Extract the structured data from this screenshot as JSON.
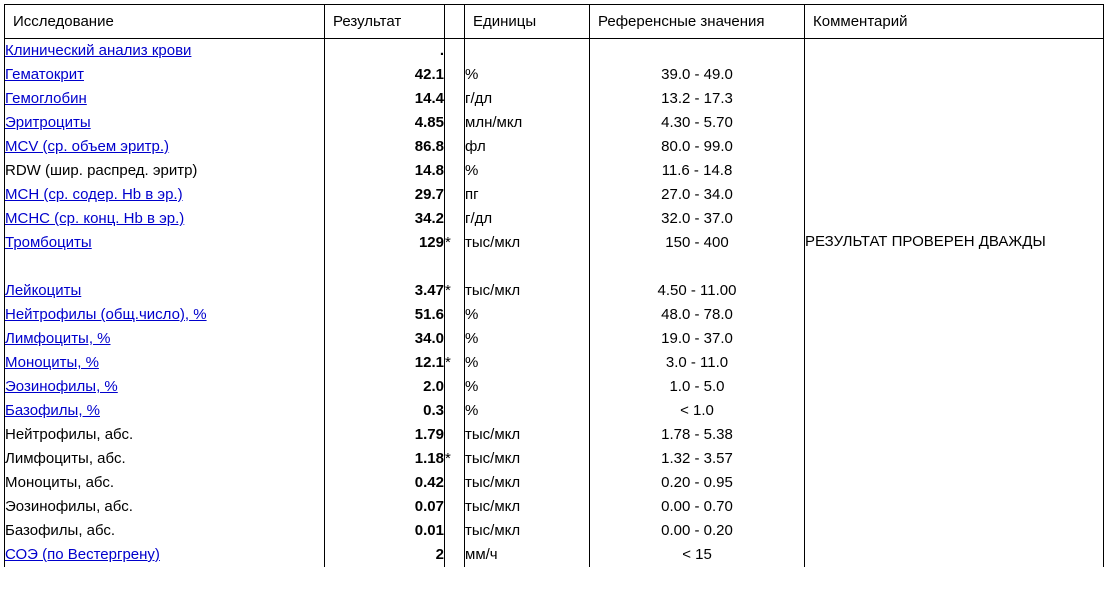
{
  "headers": {
    "research": "Исследование",
    "result": "Результат",
    "units": "Единицы",
    "reference": "Референсные значения",
    "comment": "Комментарий"
  },
  "comment_text": "РЕЗУЛЬТАТ ПРОВЕРЕН ДВАЖДЫ",
  "link_color": "#0000cc",
  "rows": [
    {
      "name": "Клинический анализ крови",
      "link": true,
      "result": ".",
      "flag": "",
      "units": "",
      "ref": ""
    },
    {
      "name": "Гематокрит",
      "link": true,
      "result": "42.1",
      "flag": "",
      "units": "%",
      "ref": "39.0 - 49.0"
    },
    {
      "name": "Гемоглобин",
      "link": true,
      "result": "14.4",
      "flag": "",
      "units": "г/дл",
      "ref": "13.2 - 17.3"
    },
    {
      "name": "Эритроциты",
      "link": true,
      "result": "4.85",
      "flag": "",
      "units": "млн/мкл",
      "ref": "4.30 - 5.70"
    },
    {
      "name": "MCV (ср. объем эритр.)",
      "link": true,
      "result": "86.8",
      "flag": "",
      "units": "фл",
      "ref": "80.0 - 99.0"
    },
    {
      "name": "RDW (шир. распред. эритр)",
      "link": false,
      "result": "14.8",
      "flag": "",
      "units": "%",
      "ref": "11.6 - 14.8"
    },
    {
      "name": "MCH (ср. содер. Hb в эр.)",
      "link": true,
      "result": "29.7",
      "flag": "",
      "units": "пг",
      "ref": "27.0 - 34.0"
    },
    {
      "name": "MCHC (ср. конц. Hb в эр.)",
      "link": true,
      "result": "34.2",
      "flag": "",
      "units": "г/дл",
      "ref": "32.0 - 37.0"
    },
    {
      "name": "Тромбоциты",
      "link": true,
      "result": "129",
      "flag": "*",
      "units": "тыс/мкл",
      "ref": "150 - 400"
    },
    {
      "name": "",
      "link": false,
      "result": "",
      "flag": "",
      "units": "",
      "ref": "",
      "spacer": true
    },
    {
      "name": "Лейкоциты",
      "link": true,
      "result": "3.47",
      "flag": "*",
      "units": "тыс/мкл",
      "ref": "4.50 - 11.00"
    },
    {
      "name": "Нейтрофилы (общ.число), %",
      "link": true,
      "result": "51.6",
      "flag": "",
      "units": "%",
      "ref": "48.0 - 78.0"
    },
    {
      "name": "Лимфоциты, %",
      "link": true,
      "result": "34.0",
      "flag": "",
      "units": "%",
      "ref": "19.0 - 37.0"
    },
    {
      "name": "Моноциты, %",
      "link": true,
      "result": "12.1",
      "flag": "*",
      "units": "%",
      "ref": "3.0 - 11.0"
    },
    {
      "name": "Эозинофилы, %",
      "link": true,
      "result": "2.0",
      "flag": "",
      "units": "%",
      "ref": "1.0 - 5.0"
    },
    {
      "name": "Базофилы, %",
      "link": true,
      "result": "0.3",
      "flag": "",
      "units": "%",
      "ref": "< 1.0"
    },
    {
      "name": "Нейтрофилы, абс.",
      "link": false,
      "result": "1.79",
      "flag": "",
      "units": "тыс/мкл",
      "ref": "1.78 - 5.38"
    },
    {
      "name": "Лимфоциты, абс.",
      "link": false,
      "result": "1.18",
      "flag": "*",
      "units": "тыс/мкл",
      "ref": "1.32 - 3.57"
    },
    {
      "name": "Моноциты, абс.",
      "link": false,
      "result": "0.42",
      "flag": "",
      "units": "тыс/мкл",
      "ref": "0.20 - 0.95"
    },
    {
      "name": "Эозинофилы, абс.",
      "link": false,
      "result": "0.07",
      "flag": "",
      "units": "тыс/мкл",
      "ref": "0.00 - 0.70"
    },
    {
      "name": "Базофилы, абс.",
      "link": false,
      "result": "0.01",
      "flag": "",
      "units": "тыс/мкл",
      "ref": "0.00 - 0.20"
    },
    {
      "name": "СОЭ (по Вестергрену)",
      "link": true,
      "result": "2",
      "flag": "",
      "units": "мм/ч",
      "ref": "< 15"
    }
  ]
}
